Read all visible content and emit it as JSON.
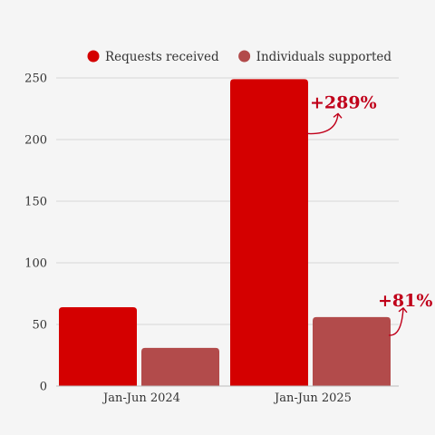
{
  "chart_data": {
    "type": "bar",
    "categories": [
      "Jan-Jun 2024",
      "Jan-Jun 2025"
    ],
    "series": [
      {
        "name": "Requests received",
        "values": [
          64,
          249
        ],
        "color": "#d40000"
      },
      {
        "name": "Individuals supported",
        "values": [
          31,
          56
        ],
        "color": "#b24b4b"
      }
    ],
    "ylim": [
      0,
      250
    ],
    "yticks": [
      0,
      50,
      100,
      150,
      200,
      250
    ],
    "grid": true,
    "legend": "top",
    "annotations": [
      {
        "text": "+289%",
        "series": 0,
        "category": 1,
        "color": "#c0001a"
      },
      {
        "text": "+81%",
        "series": 1,
        "category": 1,
        "color": "#c0001a"
      }
    ]
  }
}
